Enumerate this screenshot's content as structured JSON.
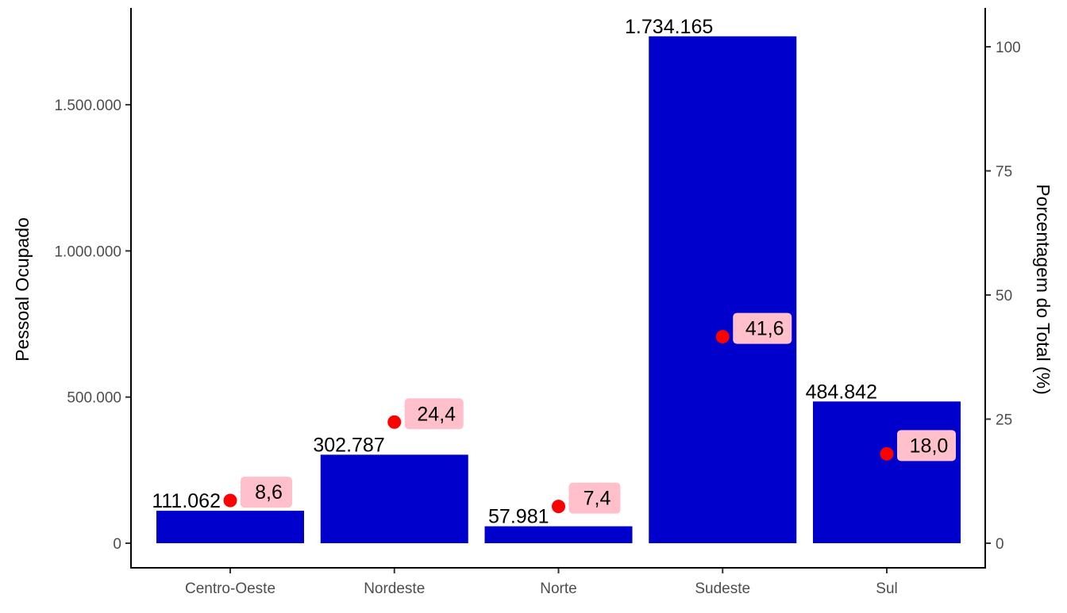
{
  "chart_data": {
    "type": "bar",
    "categories": [
      "Centro-Oeste",
      "Nordeste",
      "Norte",
      "Sudeste",
      "Sul"
    ],
    "series": [
      {
        "values": [
          111062,
          302787,
          57981,
          1734165,
          484842
        ],
        "labels": [
          "111.062",
          "302.787",
          "57.981",
          "1.734.165",
          "484.842"
        ],
        "color": "#0000CD",
        "axis": "left"
      },
      {
        "type": "scatter",
        "values": [
          8.6,
          24.4,
          7.4,
          41.6,
          18.0
        ],
        "labels": [
          "8,6",
          "24,4",
          "7,4",
          "41,6",
          "18,0"
        ],
        "color": "#FF0000",
        "label_fill": "#FFC0CB",
        "axis": "right"
      }
    ],
    "ylabel": "Pessoal Ocupado",
    "y2label": "Porcentagem do Total (%)",
    "ylim": [
      0,
      1734165
    ],
    "y2lim": [
      0,
      100
    ],
    "yticks": [
      0,
      500000,
      1000000,
      1500000
    ],
    "ytick_labels": [
      "0",
      "500.000",
      "1.000.000",
      "1.500.000"
    ],
    "y2ticks": [
      0,
      25,
      50,
      75,
      100
    ],
    "y2tick_labels": [
      "0",
      "25",
      "50",
      "75",
      "100"
    ],
    "grid": false,
    "legend": "none"
  }
}
